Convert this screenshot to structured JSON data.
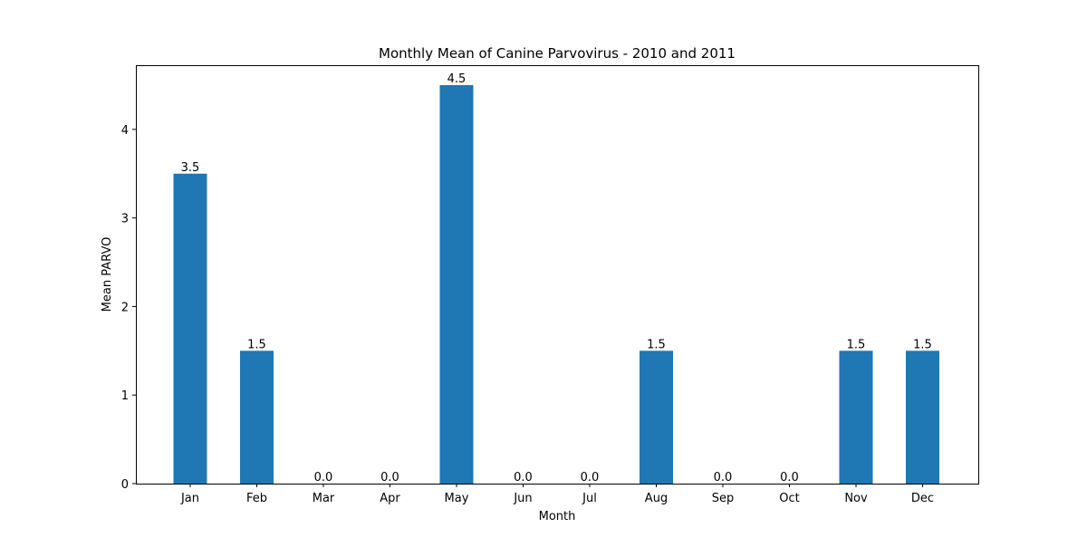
{
  "chart_data": {
    "type": "bar",
    "title": "Monthly Mean of Canine Parvovirus - 2010 and 2011",
    "xlabel": "Month",
    "ylabel": "Mean PARVO",
    "categories": [
      "Jan",
      "Feb",
      "Mar",
      "Apr",
      "May",
      "Jun",
      "Jul",
      "Aug",
      "Sep",
      "Oct",
      "Nov",
      "Dec"
    ],
    "values": [
      3.5,
      1.5,
      0.0,
      0.0,
      4.5,
      0.0,
      0.0,
      1.5,
      0.0,
      0.0,
      1.5,
      1.5
    ],
    "data_labels": [
      "3.5",
      "1.5",
      "0.0",
      "0.0",
      "4.5",
      "0.0",
      "0.0",
      "1.5",
      "0.0",
      "0.0",
      "1.5",
      "1.5"
    ],
    "yticks": [
      0,
      1,
      2,
      3,
      4
    ],
    "ytick_labels": [
      "0",
      "1",
      "2",
      "3",
      "4"
    ],
    "ylim": [
      0,
      4.725
    ],
    "bar_color": "#1f77b4",
    "grid": false,
    "legend": "none"
  }
}
